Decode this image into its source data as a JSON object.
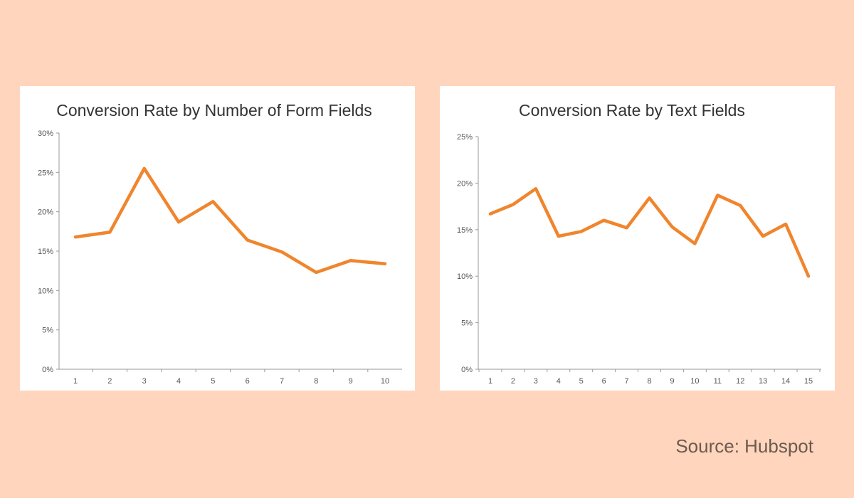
{
  "source_label": "Source: Hubspot",
  "chart_data": [
    {
      "type": "line",
      "title": "Conversion Rate by Number of Form Fields",
      "xlabel": "",
      "ylabel": "",
      "x": [
        "1",
        "2",
        "3",
        "4",
        "5",
        "6",
        "7",
        "8",
        "9",
        "10"
      ],
      "y_ticks": [
        "0%",
        "5%",
        "10%",
        "15%",
        "20%",
        "25%",
        "30%"
      ],
      "ylim": [
        0,
        30
      ],
      "series": [
        {
          "color": "#F0852D",
          "values": [
            16.8,
            17.4,
            25.5,
            18.7,
            21.3,
            16.4,
            14.9,
            12.3,
            13.8,
            13.4
          ]
        }
      ],
      "grid": false
    },
    {
      "type": "line",
      "title": "Conversion Rate by Text Fields",
      "xlabel": "",
      "ylabel": "",
      "x": [
        "1",
        "2",
        "3",
        "4",
        "5",
        "6",
        "7",
        "8",
        "9",
        "10",
        "11",
        "12",
        "13",
        "14",
        "15"
      ],
      "y_ticks": [
        "0%",
        "5%",
        "10%",
        "15%",
        "20%",
        "25%"
      ],
      "ylim": [
        0,
        25
      ],
      "series": [
        {
          "color": "#F0852D",
          "values": [
            16.7,
            17.7,
            19.4,
            14.3,
            14.8,
            16.0,
            15.2,
            18.4,
            15.3,
            13.5,
            18.7,
            17.6,
            14.3,
            15.6,
            10.0
          ]
        }
      ],
      "grid": false
    }
  ]
}
